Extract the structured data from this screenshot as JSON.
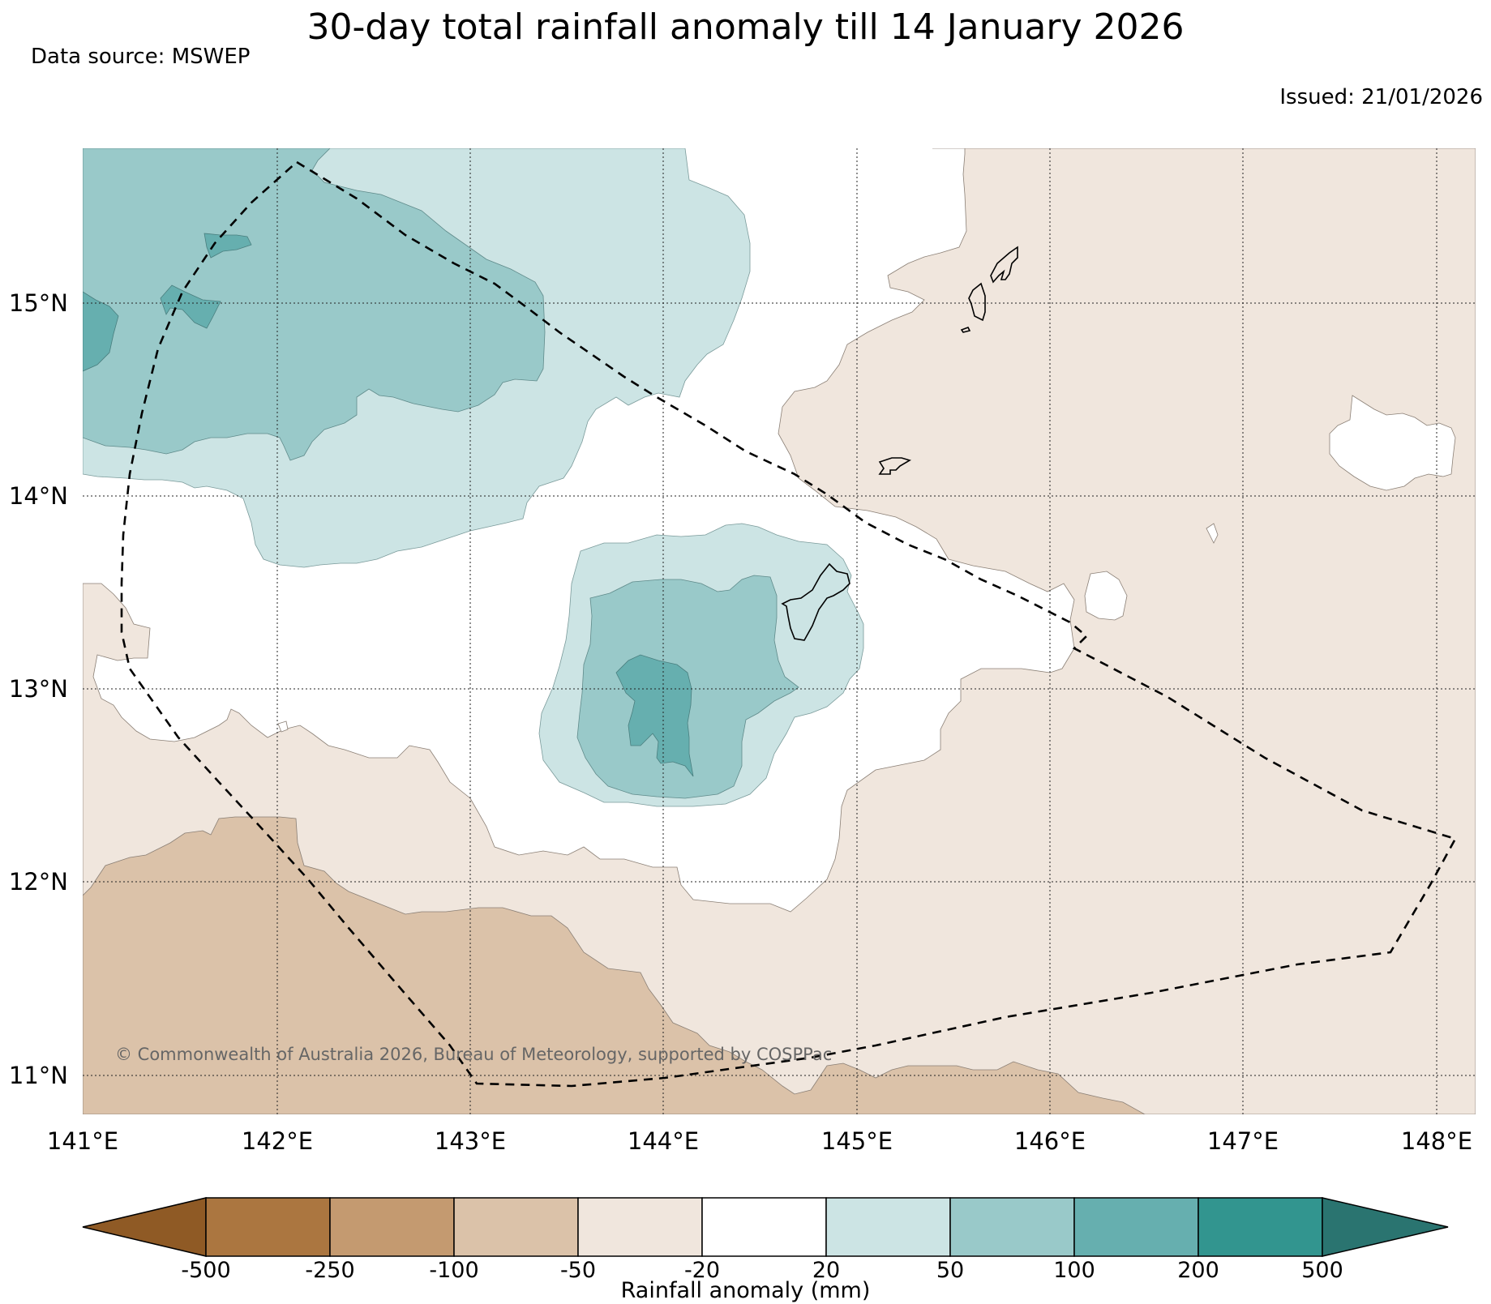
{
  "header": {
    "title": "30-day total rainfall anomaly till 14 January 2026",
    "data_source": "Data source: MSWEP",
    "issued": "Issued: 21/01/2026"
  },
  "map": {
    "lon_ticks": [
      "141°E",
      "142°E",
      "143°E",
      "144°E",
      "145°E",
      "146°E",
      "147°E",
      "148°E"
    ],
    "lat_ticks": [
      "15°N",
      "14°N",
      "13°N",
      "12°N",
      "11°N"
    ],
    "copyright": "© Commonwealth of Australia 2026, Bureau of Meteorology, supported by COSPPac",
    "gridlines": true
  },
  "colorbar": {
    "label": "Rainfall anomaly (mm)",
    "ticks": [
      "-500",
      "-250",
      "-100",
      "-50",
      "-20",
      "20",
      "50",
      "100",
      "200",
      "500"
    ],
    "colors": [
      "#8f5a25",
      "#ab7640",
      "#c49a70",
      "#dbc2a9",
      "#f0e6dd",
      "#ffffff",
      "#cce4e4",
      "#99c9c9",
      "#66afaf",
      "#32958f",
      "#2a7470"
    ]
  },
  "colors": {
    "wet_light": "#cce4e4",
    "wet_mid": "#99c9c9",
    "wet_strong": "#66afaf",
    "dry_light": "#f0e6dd",
    "dry_mid": "#dbc2a9"
  }
}
